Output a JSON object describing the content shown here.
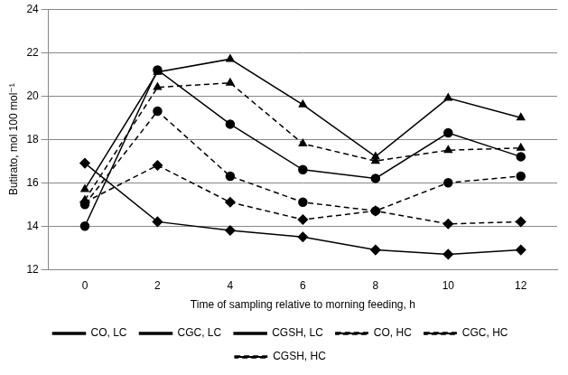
{
  "chart_data": {
    "type": "line",
    "x_label": "Time of sampling relative to morning feeding, h",
    "y_label": "Butirato, mol 100 mol⁻¹",
    "categories": [
      "0",
      "2",
      "4",
      "6",
      "8",
      "10",
      "12"
    ],
    "ylim": [
      12,
      24
    ],
    "yticks": [
      12,
      14,
      16,
      18,
      20,
      22,
      24
    ],
    "grid": true,
    "legend": "bottom",
    "series": [
      {
        "name": "CO, LC",
        "color": "#000000",
        "marker": "diamond",
        "line_style": "solid",
        "values": [
          16.9,
          14.2,
          13.8,
          13.5,
          12.9,
          12.7,
          12.9
        ]
      },
      {
        "name": "CGC, LC",
        "color": "#000000",
        "marker": "triangle",
        "line_style": "solid",
        "values": [
          15.7,
          21.1,
          21.7,
          19.6,
          17.2,
          19.9,
          19.0
        ]
      },
      {
        "name": "CGSH, LC",
        "color": "#000000",
        "marker": "circle",
        "line_style": "solid",
        "values": [
          14.0,
          21.2,
          18.7,
          16.6,
          16.2,
          18.3,
          17.2
        ]
      },
      {
        "name": "CO, HC",
        "color": "#000000",
        "marker": "diamond",
        "line_style": "dashed",
        "values": [
          15.1,
          16.8,
          15.1,
          14.3,
          14.7,
          14.1,
          14.2
        ]
      },
      {
        "name": "CGC, HC",
        "color": "#000000",
        "marker": "triangle",
        "line_style": "dashed",
        "values": [
          15.2,
          20.4,
          20.6,
          17.8,
          17.0,
          17.5,
          17.6
        ]
      },
      {
        "name": "CGSH, HC",
        "color": "#000000",
        "marker": "circle",
        "line_style": "dashed",
        "values": [
          15.0,
          19.3,
          16.3,
          15.1,
          14.7,
          16.0,
          16.3
        ]
      }
    ]
  }
}
